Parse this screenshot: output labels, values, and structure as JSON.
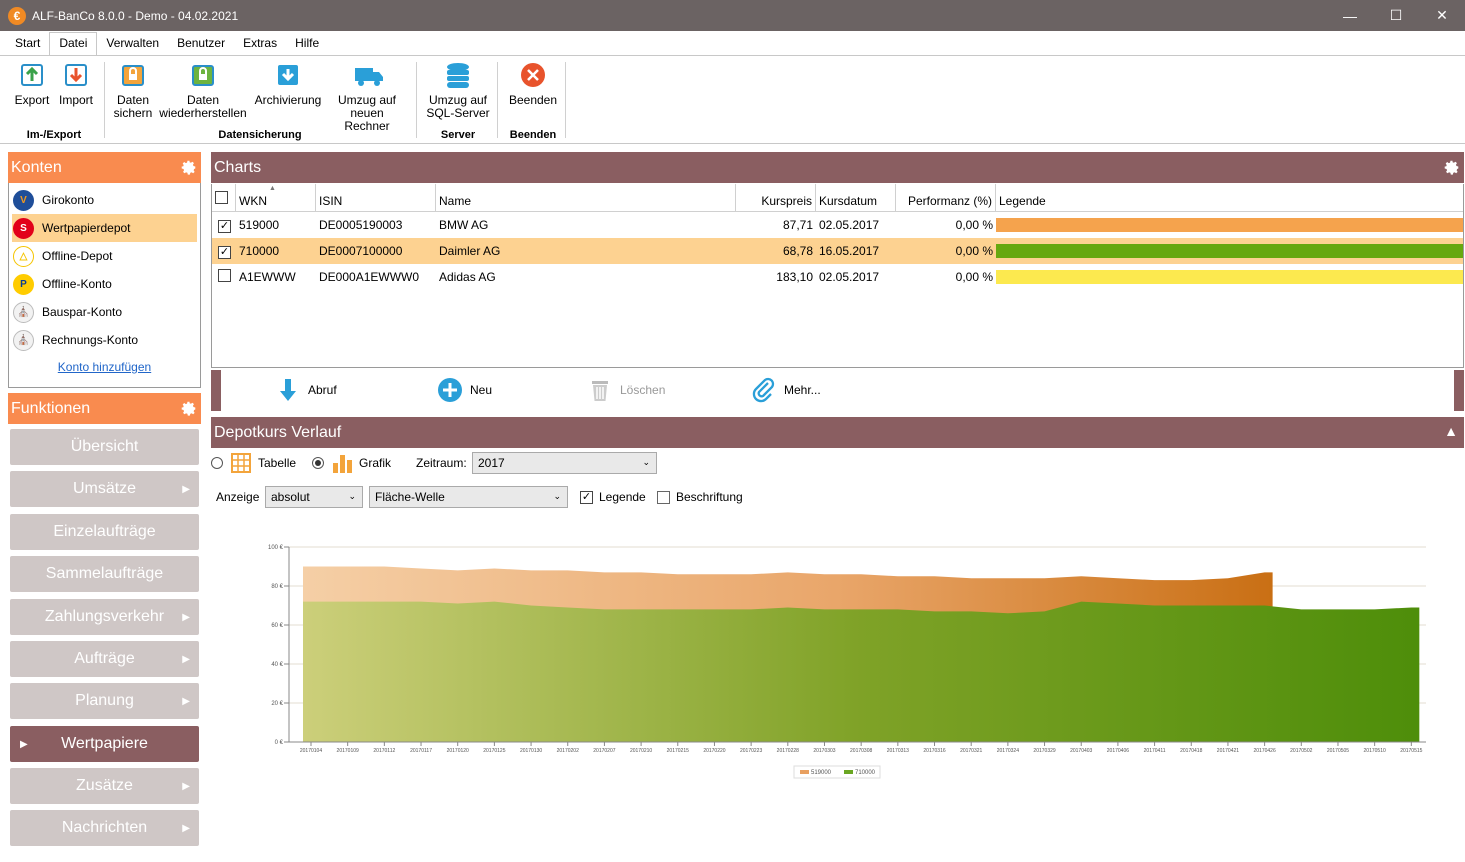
{
  "window": {
    "title": "ALF-BanCo 8.0.0 - Demo  -  04.02.2021",
    "app_glyph": "€"
  },
  "menu": [
    "Start",
    "Datei",
    "Verwalten",
    "Benutzer",
    "Extras",
    "Hilfe"
  ],
  "ribbon": {
    "export": "Export",
    "import": "Import",
    "daten_sichern": [
      "Daten",
      "sichern"
    ],
    "daten_wiederherstellen": [
      "Daten",
      "wiederherstellen"
    ],
    "archivierung": "Archivierung",
    "umzug_rechner": [
      "Umzug auf",
      "neuen Rechner"
    ],
    "umzug_sql": [
      "Umzug auf",
      "SQL-Server"
    ],
    "beenden": "Beenden",
    "groups": {
      "imexport": "Im-/Export",
      "datensicherung": "Datensicherung",
      "server": "Server",
      "beenden": "Beenden"
    }
  },
  "konten": {
    "title": "Konten",
    "items": [
      {
        "label": "Girokonto",
        "icon": "volksbank-icon"
      },
      {
        "label": "Wertpapierdepot",
        "icon": "sparkasse-icon"
      },
      {
        "label": "Offline-Depot",
        "icon": "commerzbank-icon"
      },
      {
        "label": "Offline-Konto",
        "icon": "postbank-icon"
      },
      {
        "label": "Bauspar-Konto",
        "icon": "bank-icon"
      },
      {
        "label": "Rechnungs-Konto",
        "icon": "bank-icon"
      }
    ],
    "add_link": "Konto hinzufügen"
  },
  "funktionen": {
    "title": "Funktionen",
    "items": [
      "Übersicht",
      "Umsätze",
      "Einzelaufträge",
      "Sammelaufträge",
      "Zahlungsverkehr",
      "Aufträge",
      "Planung",
      "Wertpapiere",
      "Zusätze",
      "Nachrichten"
    ],
    "active": "Wertpapiere"
  },
  "charts": {
    "title": "Charts",
    "columns": [
      "WKN",
      "ISIN",
      "Name",
      "Kurspreis",
      "Kursdatum",
      "Performanz (%)",
      "Legende"
    ],
    "rows": [
      {
        "checked": true,
        "wkn": "519000",
        "isin": "DE0005190003",
        "name": "BMW AG",
        "kurs": "87,71",
        "datum": "02.05.2017",
        "perf": "0,00 %",
        "color": "#f5a34d"
      },
      {
        "checked": true,
        "wkn": "710000",
        "isin": "DE0007100000",
        "name": "Daimler AG",
        "kurs": "68,78",
        "datum": "16.05.2017",
        "perf": "0,00 %",
        "color": "#66a80f"
      },
      {
        "checked": false,
        "wkn": "A1EWWW",
        "isin": "DE000A1EWWW0",
        "name": "Adidas AG",
        "kurs": "183,10",
        "datum": "02.05.2017",
        "perf": "0,00 %",
        "color": "#fce94f"
      }
    ]
  },
  "actions": {
    "abruf": "Abruf",
    "neu": "Neu",
    "loeschen": "Löschen",
    "mehr": "Mehr..."
  },
  "verlauf": {
    "title": "Depotkurs Verlauf",
    "tabelle": "Tabelle",
    "grafik": "Grafik",
    "zeitraum_label": "Zeitraum:",
    "zeitraum_value": "2017",
    "anzeige_label": "Anzeige",
    "anzeige_value": "absolut",
    "chart_type_value": "Fläche-Welle",
    "legende_label": "Legende",
    "beschriftung_label": "Beschriftung"
  },
  "chart_data": {
    "type": "area",
    "ylim": [
      0,
      100
    ],
    "yticks": [
      "0 €",
      "20 €",
      "40 €",
      "60 €",
      "80 €",
      "100 €"
    ],
    "x": [
      "20170104",
      "20170109",
      "20170112",
      "20170117",
      "20170120",
      "20170125",
      "20170130",
      "20170202",
      "20170207",
      "20170210",
      "20170215",
      "20170220",
      "20170223",
      "20170228",
      "20170303",
      "20170308",
      "20170313",
      "20170316",
      "20170321",
      "20170324",
      "20170329",
      "20170403",
      "20170406",
      "20170411",
      "20170418",
      "20170421",
      "20170426",
      "20170502",
      "20170505",
      "20170510",
      "20170515"
    ],
    "series": [
      {
        "name": "519000",
        "color": "#e8a060",
        "values": [
          90,
          90,
          90,
          89,
          88,
          89,
          88,
          88,
          87,
          87,
          86,
          86,
          86,
          87,
          86,
          86,
          85,
          85,
          84,
          84,
          84,
          85,
          84,
          83,
          83,
          84,
          87,
          null,
          null,
          null,
          null
        ]
      },
      {
        "name": "710000",
        "color": "#6aa622",
        "values": [
          72,
          72,
          72,
          72,
          71,
          72,
          70,
          69,
          68,
          68,
          68,
          68,
          68,
          69,
          68,
          68,
          68,
          67,
          67,
          66,
          67,
          72,
          71,
          70,
          70,
          70,
          70,
          68,
          68,
          68,
          69
        ]
      }
    ]
  }
}
